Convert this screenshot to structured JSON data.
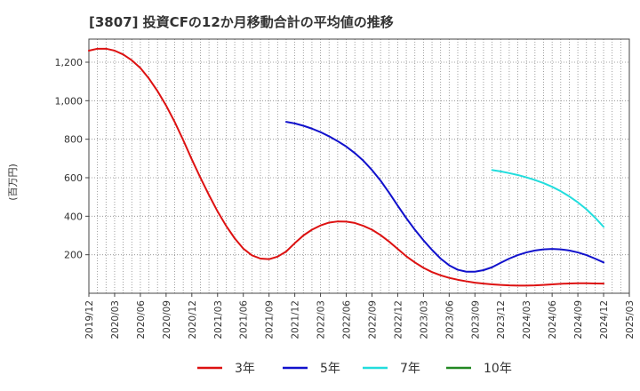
{
  "chart_data": {
    "type": "line",
    "title": "[3807]  投資CFの12か月移動合計の平均値の推移",
    "ylabel": "(百万円)",
    "xlabel": "",
    "ylim": [
      0,
      1320
    ],
    "yticks": [
      200,
      400,
      600,
      800,
      1000,
      1200
    ],
    "ytick_labels": [
      "200",
      "400",
      "600",
      "800",
      "1,000",
      "1,200"
    ],
    "xlim": [
      "2019-12",
      "2025-03"
    ],
    "xtick_labels": [
      "2019/12",
      "2020/03",
      "2020/06",
      "2020/09",
      "2020/12",
      "2021/03",
      "2021/06",
      "2021/09",
      "2021/12",
      "2022/03",
      "2022/06",
      "2022/09",
      "2022/12",
      "2023/03",
      "2023/06",
      "2023/09",
      "2023/12",
      "2024/03",
      "2024/06",
      "2024/09",
      "2024/12",
      "2025/03"
    ],
    "grid": true,
    "legend_position": "bottom",
    "series": [
      {
        "name": "3年",
        "color": "#dd1111",
        "points": [
          [
            "2019-12",
            1260
          ],
          [
            "2020-01",
            1270
          ],
          [
            "2020-02",
            1270
          ],
          [
            "2020-03",
            1260
          ],
          [
            "2020-04",
            1240
          ],
          [
            "2020-05",
            1210
          ],
          [
            "2020-06",
            1170
          ],
          [
            "2020-07",
            1115
          ],
          [
            "2020-08",
            1050
          ],
          [
            "2020-09",
            975
          ],
          [
            "2020-10",
            890
          ],
          [
            "2020-11",
            795
          ],
          [
            "2020-12",
            695
          ],
          [
            "2021-01",
            600
          ],
          [
            "2021-02",
            510
          ],
          [
            "2021-03",
            425
          ],
          [
            "2021-04",
            350
          ],
          [
            "2021-05",
            285
          ],
          [
            "2021-06",
            232
          ],
          [
            "2021-07",
            197
          ],
          [
            "2021-08",
            180
          ],
          [
            "2021-09",
            177
          ],
          [
            "2021-10",
            190
          ],
          [
            "2021-11",
            217
          ],
          [
            "2021-12",
            260
          ],
          [
            "2022-01",
            300
          ],
          [
            "2022-02",
            330
          ],
          [
            "2022-03",
            352
          ],
          [
            "2022-04",
            367
          ],
          [
            "2022-05",
            373
          ],
          [
            "2022-06",
            372
          ],
          [
            "2022-07",
            365
          ],
          [
            "2022-08",
            350
          ],
          [
            "2022-09",
            330
          ],
          [
            "2022-10",
            302
          ],
          [
            "2022-11",
            268
          ],
          [
            "2022-12",
            230
          ],
          [
            "2023-01",
            192
          ],
          [
            "2023-02",
            160
          ],
          [
            "2023-03",
            132
          ],
          [
            "2023-04",
            110
          ],
          [
            "2023-05",
            93
          ],
          [
            "2023-06",
            80
          ],
          [
            "2023-07",
            70
          ],
          [
            "2023-08",
            62
          ],
          [
            "2023-09",
            55
          ],
          [
            "2023-10",
            50
          ],
          [
            "2023-11",
            46
          ],
          [
            "2023-12",
            43
          ],
          [
            "2024-01",
            41
          ],
          [
            "2024-02",
            40
          ],
          [
            "2024-03",
            40
          ],
          [
            "2024-04",
            41
          ],
          [
            "2024-05",
            43
          ],
          [
            "2024-06",
            46
          ],
          [
            "2024-07",
            49
          ],
          [
            "2024-08",
            51
          ],
          [
            "2024-09",
            52
          ],
          [
            "2024-10",
            52
          ],
          [
            "2024-11",
            51
          ],
          [
            "2024-12",
            50
          ]
        ]
      },
      {
        "name": "5年",
        "color": "#1111cc",
        "points": [
          [
            "2021-11",
            890
          ],
          [
            "2021-12",
            882
          ],
          [
            "2022-01",
            870
          ],
          [
            "2022-02",
            855
          ],
          [
            "2022-03",
            837
          ],
          [
            "2022-04",
            815
          ],
          [
            "2022-05",
            790
          ],
          [
            "2022-06",
            762
          ],
          [
            "2022-07",
            728
          ],
          [
            "2022-08",
            688
          ],
          [
            "2022-09",
            640
          ],
          [
            "2022-10",
            585
          ],
          [
            "2022-11",
            522
          ],
          [
            "2022-12",
            455
          ],
          [
            "2023-01",
            390
          ],
          [
            "2023-02",
            330
          ],
          [
            "2023-03",
            275
          ],
          [
            "2023-04",
            225
          ],
          [
            "2023-05",
            180
          ],
          [
            "2023-06",
            145
          ],
          [
            "2023-07",
            122
          ],
          [
            "2023-08",
            112
          ],
          [
            "2023-09",
            112
          ],
          [
            "2023-10",
            120
          ],
          [
            "2023-11",
            135
          ],
          [
            "2023-12",
            158
          ],
          [
            "2024-01",
            180
          ],
          [
            "2024-02",
            198
          ],
          [
            "2024-03",
            212
          ],
          [
            "2024-04",
            222
          ],
          [
            "2024-05",
            228
          ],
          [
            "2024-06",
            230
          ],
          [
            "2024-07",
            228
          ],
          [
            "2024-08",
            222
          ],
          [
            "2024-09",
            212
          ],
          [
            "2024-10",
            198
          ],
          [
            "2024-11",
            180
          ],
          [
            "2024-12",
            160
          ]
        ]
      },
      {
        "name": "7年",
        "color": "#22dddd",
        "points": [
          [
            "2023-11",
            640
          ],
          [
            "2023-12",
            633
          ],
          [
            "2024-01",
            624
          ],
          [
            "2024-02",
            614
          ],
          [
            "2024-03",
            602
          ],
          [
            "2024-04",
            588
          ],
          [
            "2024-05",
            572
          ],
          [
            "2024-06",
            553
          ],
          [
            "2024-07",
            530
          ],
          [
            "2024-08",
            503
          ],
          [
            "2024-09",
            472
          ],
          [
            "2024-10",
            436
          ],
          [
            "2024-11",
            393
          ],
          [
            "2024-12",
            345
          ]
        ]
      },
      {
        "name": "10年",
        "color": "#228822",
        "points": []
      }
    ]
  }
}
